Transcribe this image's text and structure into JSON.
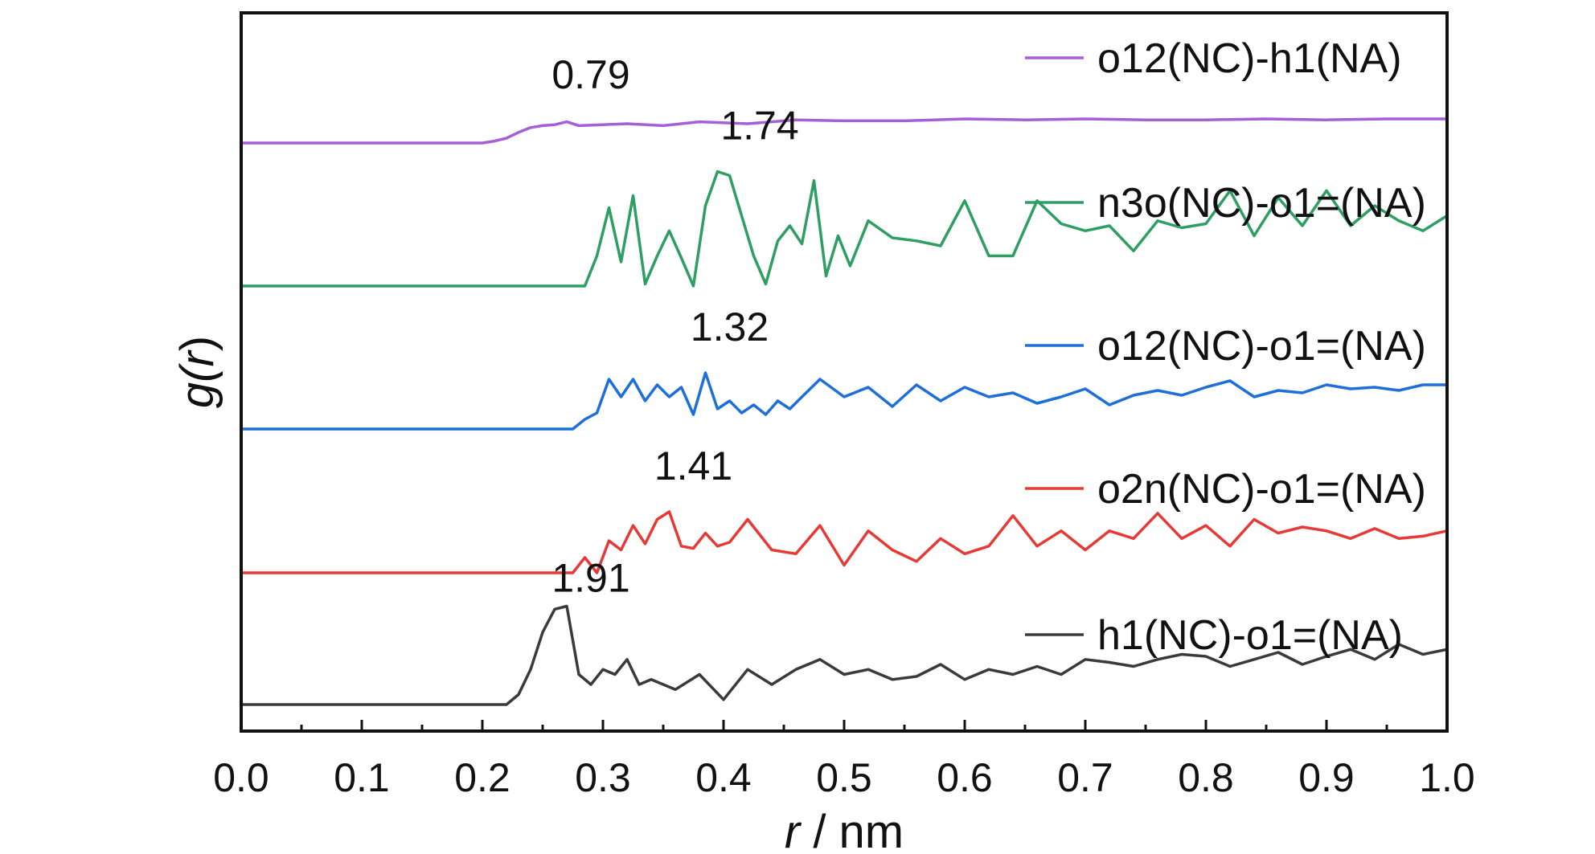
{
  "chart_data": {
    "type": "line",
    "xlabel": {
      "var": "r",
      "unit": " / nm"
    },
    "ylabel": {
      "func": "g(",
      "var": "r",
      "close": ")"
    },
    "xlim": [
      0.0,
      1.0
    ],
    "xticks": [
      "0.0",
      "0.1",
      "0.2",
      "0.3",
      "0.4",
      "0.5",
      "0.6",
      "0.7",
      "0.8",
      "0.9",
      "1.0"
    ],
    "yticks": "none",
    "stacking": "vertically offset traces",
    "legend": "right, each entry beside its trace",
    "grid": false,
    "series": [
      {
        "name": "o12(NC)-h1(NA)",
        "color": "#a65fd6",
        "peak_label": "0.79",
        "peak_x": 0.27,
        "x": [
          0.0,
          0.2,
          0.21,
          0.22,
          0.23,
          0.24,
          0.25,
          0.26,
          0.27,
          0.28,
          0.3,
          0.32,
          0.35,
          0.38,
          0.42,
          0.46,
          0.5,
          0.55,
          0.6,
          0.65,
          0.7,
          0.75,
          0.8,
          0.85,
          0.9,
          0.95,
          1.0
        ],
        "y": [
          0.0,
          0.0,
          0.04,
          0.1,
          0.22,
          0.32,
          0.36,
          0.38,
          0.44,
          0.36,
          0.38,
          0.4,
          0.36,
          0.44,
          0.4,
          0.48,
          0.46,
          0.46,
          0.5,
          0.48,
          0.5,
          0.48,
          0.48,
          0.5,
          0.48,
          0.5,
          0.5
        ]
      },
      {
        "name": "n3o(NC)-o1=(NA)",
        "color": "#2e9e63",
        "peak_label": "1.74",
        "peak_x": 0.41,
        "x": [
          0.0,
          0.285,
          0.295,
          0.305,
          0.315,
          0.325,
          0.335,
          0.345,
          0.355,
          0.365,
          0.375,
          0.385,
          0.395,
          0.405,
          0.415,
          0.425,
          0.435,
          0.445,
          0.455,
          0.465,
          0.475,
          0.485,
          0.495,
          0.505,
          0.52,
          0.54,
          0.56,
          0.58,
          0.6,
          0.62,
          0.64,
          0.66,
          0.68,
          0.7,
          0.72,
          0.74,
          0.76,
          0.78,
          0.8,
          0.82,
          0.84,
          0.86,
          0.88,
          0.9,
          0.92,
          0.94,
          0.96,
          0.98,
          1.0
        ],
        "y": [
          0.0,
          0.0,
          0.3,
          0.78,
          0.24,
          0.9,
          0.02,
          0.3,
          0.55,
          0.28,
          0.0,
          0.8,
          1.14,
          1.1,
          0.7,
          0.3,
          0.02,
          0.45,
          0.6,
          0.42,
          1.05,
          0.1,
          0.5,
          0.2,
          0.65,
          0.48,
          0.45,
          0.4,
          0.85,
          0.3,
          0.3,
          0.85,
          0.62,
          0.55,
          0.6,
          0.35,
          0.65,
          0.58,
          0.62,
          0.95,
          0.5,
          0.88,
          0.6,
          0.95,
          0.6,
          0.8,
          0.65,
          0.55,
          0.7
        ]
      },
      {
        "name": "o12(NC)-o1=(NA)",
        "color": "#1f6fd8",
        "peak_label": "1.32",
        "peak_x": 0.385,
        "x": [
          0.0,
          0.275,
          0.285,
          0.295,
          0.305,
          0.315,
          0.325,
          0.335,
          0.345,
          0.355,
          0.365,
          0.375,
          0.385,
          0.395,
          0.405,
          0.415,
          0.425,
          0.435,
          0.445,
          0.455,
          0.465,
          0.48,
          0.5,
          0.52,
          0.54,
          0.56,
          0.58,
          0.6,
          0.62,
          0.64,
          0.66,
          0.68,
          0.7,
          0.72,
          0.74,
          0.76,
          0.78,
          0.8,
          0.82,
          0.84,
          0.86,
          0.88,
          0.9,
          0.92,
          0.94,
          0.96,
          0.98,
          1.0
        ],
        "y": [
          0.0,
          0.0,
          0.12,
          0.2,
          0.62,
          0.4,
          0.62,
          0.35,
          0.55,
          0.4,
          0.52,
          0.18,
          0.7,
          0.25,
          0.35,
          0.2,
          0.3,
          0.18,
          0.35,
          0.25,
          0.4,
          0.62,
          0.4,
          0.52,
          0.28,
          0.55,
          0.35,
          0.52,
          0.4,
          0.45,
          0.32,
          0.4,
          0.5,
          0.3,
          0.42,
          0.48,
          0.42,
          0.52,
          0.6,
          0.4,
          0.48,
          0.45,
          0.55,
          0.5,
          0.52,
          0.48,
          0.55,
          0.55
        ]
      },
      {
        "name": "o2n(NC)-o1=(NA)",
        "color": "#e53a35",
        "peak_label": "1.41",
        "peak_x": 0.355,
        "x": [
          0.0,
          0.275,
          0.285,
          0.295,
          0.305,
          0.315,
          0.325,
          0.335,
          0.345,
          0.355,
          0.365,
          0.375,
          0.385,
          0.395,
          0.405,
          0.42,
          0.44,
          0.46,
          0.48,
          0.5,
          0.52,
          0.54,
          0.56,
          0.58,
          0.6,
          0.62,
          0.64,
          0.66,
          0.68,
          0.7,
          0.72,
          0.74,
          0.76,
          0.78,
          0.8,
          0.82,
          0.84,
          0.86,
          0.88,
          0.9,
          0.92,
          0.94,
          0.96,
          0.98,
          1.0
        ],
        "y": [
          0.0,
          0.0,
          0.2,
          0.0,
          0.42,
          0.3,
          0.62,
          0.38,
          0.7,
          0.8,
          0.35,
          0.32,
          0.52,
          0.35,
          0.4,
          0.7,
          0.3,
          0.25,
          0.62,
          0.1,
          0.55,
          0.3,
          0.15,
          0.45,
          0.25,
          0.35,
          0.75,
          0.35,
          0.55,
          0.3,
          0.55,
          0.45,
          0.78,
          0.45,
          0.62,
          0.35,
          0.7,
          0.52,
          0.6,
          0.55,
          0.45,
          0.58,
          0.45,
          0.48,
          0.55
        ]
      },
      {
        "name": "h1(NC)-o1=(NA)",
        "color": "#3a3a3a",
        "peak_label": "1.91",
        "peak_x": 0.27,
        "x": [
          0.0,
          0.22,
          0.23,
          0.24,
          0.25,
          0.26,
          0.27,
          0.28,
          0.29,
          0.3,
          0.31,
          0.32,
          0.33,
          0.34,
          0.36,
          0.38,
          0.4,
          0.42,
          0.44,
          0.46,
          0.48,
          0.5,
          0.52,
          0.54,
          0.56,
          0.58,
          0.6,
          0.62,
          0.64,
          0.66,
          0.68,
          0.7,
          0.72,
          0.74,
          0.76,
          0.78,
          0.8,
          0.82,
          0.84,
          0.86,
          0.88,
          0.9,
          0.92,
          0.94,
          0.96,
          0.98,
          1.0
        ],
        "y": [
          0.0,
          0.0,
          0.1,
          0.35,
          0.72,
          0.95,
          0.98,
          0.3,
          0.2,
          0.35,
          0.3,
          0.45,
          0.2,
          0.25,
          0.15,
          0.3,
          0.05,
          0.35,
          0.2,
          0.35,
          0.45,
          0.3,
          0.35,
          0.25,
          0.28,
          0.4,
          0.25,
          0.35,
          0.3,
          0.38,
          0.3,
          0.45,
          0.42,
          0.38,
          0.45,
          0.5,
          0.48,
          0.38,
          0.45,
          0.52,
          0.4,
          0.48,
          0.55,
          0.45,
          0.6,
          0.5,
          0.55
        ]
      }
    ]
  }
}
